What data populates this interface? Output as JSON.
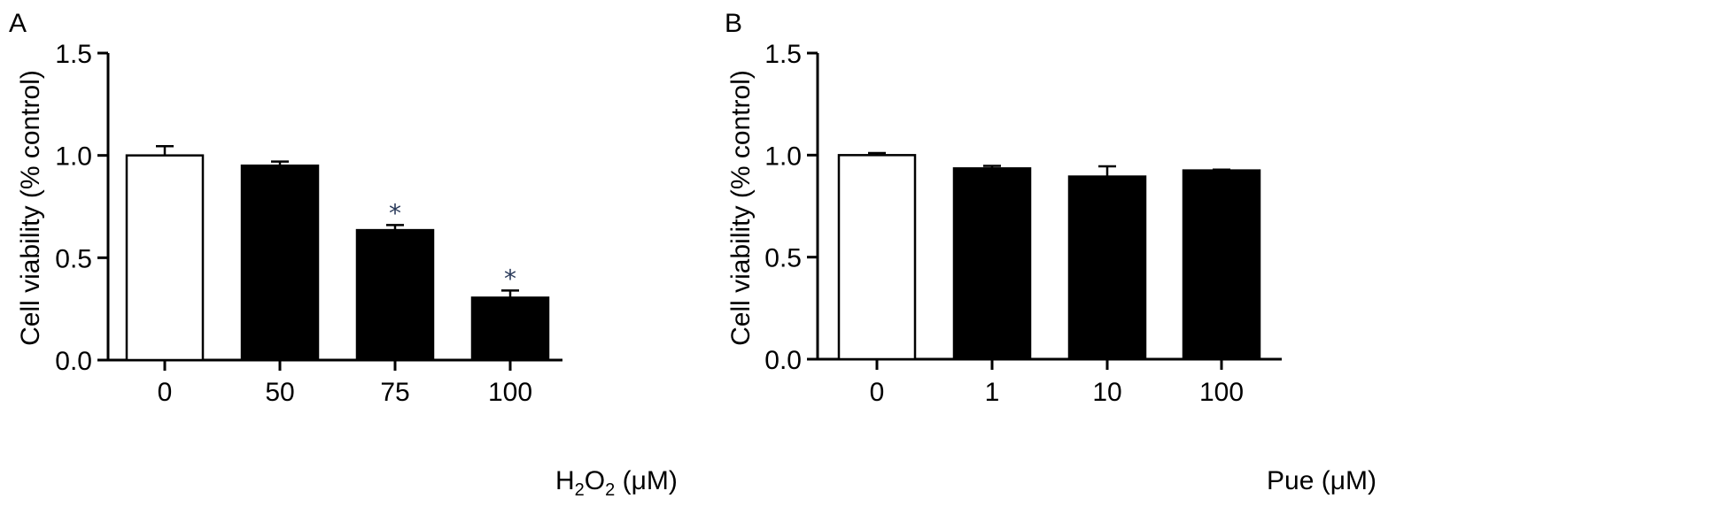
{
  "chart_data": [
    {
      "type": "bar",
      "panel_label": "A",
      "title": "",
      "ylabel": "Cell viability (% control)",
      "xlabel": {
        "base": "H",
        "sub1": "2",
        "mid": "O",
        "sub2": "2",
        "unit": " (μM)"
      },
      "ylim": [
        0,
        1.5
      ],
      "yticks": [
        "0.0",
        "0.5",
        "1.0",
        "1.5"
      ],
      "categories": [
        "0",
        "50",
        "75",
        "100"
      ],
      "values": [
        1.0,
        0.95,
        0.635,
        0.305
      ],
      "errors": [
        0.045,
        0.02,
        0.025,
        0.035
      ],
      "fills": [
        "#ffffff",
        "#000000",
        "#000000",
        "#000000"
      ],
      "significance": [
        "",
        "",
        "*",
        "*"
      ],
      "grid": false
    },
    {
      "type": "bar",
      "panel_label": "B",
      "title": "",
      "ylabel": "Cell viability (% control)",
      "xlabel": {
        "base": "Pue",
        "unit": " (μM)"
      },
      "ylim": [
        0,
        1.5
      ],
      "yticks": [
        "0.0",
        "0.5",
        "1.0",
        "1.5"
      ],
      "categories": [
        "0",
        "1",
        "10",
        "100"
      ],
      "values": [
        1.0,
        0.935,
        0.895,
        0.925
      ],
      "errors": [
        0.01,
        0.012,
        0.05,
        0.004
      ],
      "fills": [
        "#ffffff",
        "#000000",
        "#000000",
        "#000000"
      ],
      "significance": [
        "",
        "",
        "",
        ""
      ],
      "grid": false
    }
  ]
}
